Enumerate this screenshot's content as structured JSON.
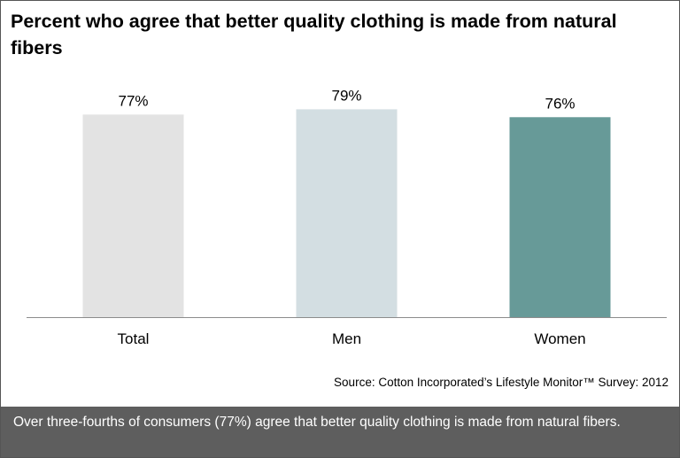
{
  "chart_data": {
    "type": "bar",
    "title": "Percent who agree that better quality clothing is made from natural fibers",
    "categories": [
      "Total",
      "Men",
      "Women"
    ],
    "values": [
      77,
      79,
      76
    ],
    "value_labels": [
      "77%",
      "79%",
      "76%"
    ],
    "bar_colors": [
      "#e3e3e3",
      "#d3dee2",
      "#679a98"
    ],
    "ylim": [
      0,
      100
    ],
    "grid": false,
    "legend": "none",
    "xlabel": "",
    "ylabel": ""
  },
  "source": "Source: Cotton Incorporated’s Lifestyle Monitor™ Survey: 2012",
  "footer": "Over three-fourths of consumers (77%) agree that better quality clothing is made from natural fibers."
}
